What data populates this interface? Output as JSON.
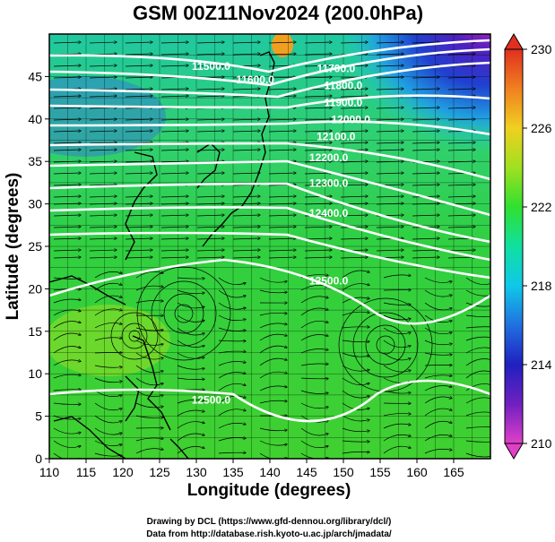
{
  "title": "GSM 00Z11Nov2024 (200.0hPa)",
  "credits": [
    "Drawing by DCL (https://www.gfd-dennou.org/library/dcl/)",
    "Data from http://database.rish.kyoto-u.ac.jp/arch/jmadata/"
  ],
  "chart_data": {
    "type": "heatmap",
    "xlabel": "Longitude (degrees)",
    "ylabel": "Latitude  (degrees)",
    "xlim": [
      110,
      170
    ],
    "ylim": [
      0,
      50
    ],
    "xticks": [
      "110",
      "115",
      "120",
      "125",
      "130",
      "135",
      "140",
      "145",
      "150",
      "155",
      "160",
      "165"
    ],
    "yticks": [
      "0",
      "5",
      "10",
      "15",
      "20",
      "25",
      "30",
      "35",
      "40",
      "45"
    ],
    "colorbar": {
      "min": 210,
      "max": 230,
      "ticks": [
        "230",
        "226",
        "222",
        "218",
        "214",
        "210"
      ],
      "colors": [
        "#e040c8",
        "#7020c0",
        "#2020c0",
        "#2070e0",
        "#10c8e8",
        "#10e0a0",
        "#30e030",
        "#a0e020",
        "#f0d020",
        "#f08020",
        "#e03020"
      ]
    },
    "contours": [
      {
        "label": "11500.0",
        "lon": 132,
        "lat": 45.8
      },
      {
        "label": "11600.0",
        "lon": 138,
        "lat": 44.2
      },
      {
        "label": "11700.0",
        "lon": 149,
        "lat": 45.5
      },
      {
        "label": "11800.0",
        "lon": 150,
        "lat": 43.5
      },
      {
        "label": "11900.0",
        "lon": 150,
        "lat": 41.5
      },
      {
        "label": "12000.0",
        "lon": 151,
        "lat": 39.5
      },
      {
        "label": "12100.0",
        "lon": 149,
        "lat": 37.5
      },
      {
        "label": "12200.0",
        "lon": 148,
        "lat": 35.0
      },
      {
        "label": "12300.0",
        "lon": 148,
        "lat": 32.0
      },
      {
        "label": "12400.0",
        "lon": 148,
        "lat": 28.5
      },
      {
        "label": "12500.0",
        "lon": 148,
        "lat": 20.5
      },
      {
        "label": "12500.0",
        "lon": 132,
        "lat": 6.5
      }
    ],
    "grid": true
  }
}
